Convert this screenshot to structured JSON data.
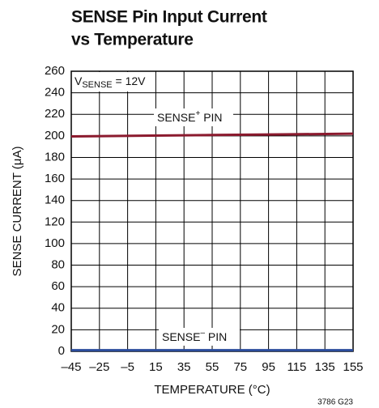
{
  "chart_data": {
    "type": "line",
    "title": [
      "SENSE Pin Input Current",
      "vs Temperature"
    ],
    "xlabel": "TEMPERATURE (°C)",
    "ylabel": "SENSE CURRENT (μA)",
    "footnote": "3786 G23",
    "annotations": [
      {
        "parts": [
          "V",
          "SENSE",
          " = 12V"
        ]
      },
      {
        "parts": [
          "SENSE",
          "+",
          " PIN"
        ]
      },
      {
        "parts": [
          "SENSE",
          "–",
          " PIN"
        ]
      }
    ],
    "x": [
      -45,
      5,
      55,
      105,
      155
    ],
    "series": [
      {
        "name": "SENSE+ PIN",
        "color": "#8b1a2e",
        "values": [
          199.5,
          200.2,
          200.8,
          201.4,
          202
        ]
      },
      {
        "name": "SENSE– PIN",
        "color": "#2a4b9b",
        "values": [
          1,
          1,
          1,
          1,
          1
        ]
      }
    ],
    "xlim": [
      -45,
      155
    ],
    "xticks": [
      {
        "value": -45,
        "label": "–45"
      },
      {
        "value": -25,
        "label": "–25"
      },
      {
        "value": -5,
        "label": "–5"
      },
      15,
      35,
      55,
      75,
      95,
      115,
      135,
      155
    ],
    "ylim": [
      0,
      260
    ],
    "yticks": [
      0,
      20,
      40,
      60,
      80,
      100,
      120,
      140,
      160,
      180,
      200,
      220,
      240,
      260
    ],
    "grid": true
  }
}
